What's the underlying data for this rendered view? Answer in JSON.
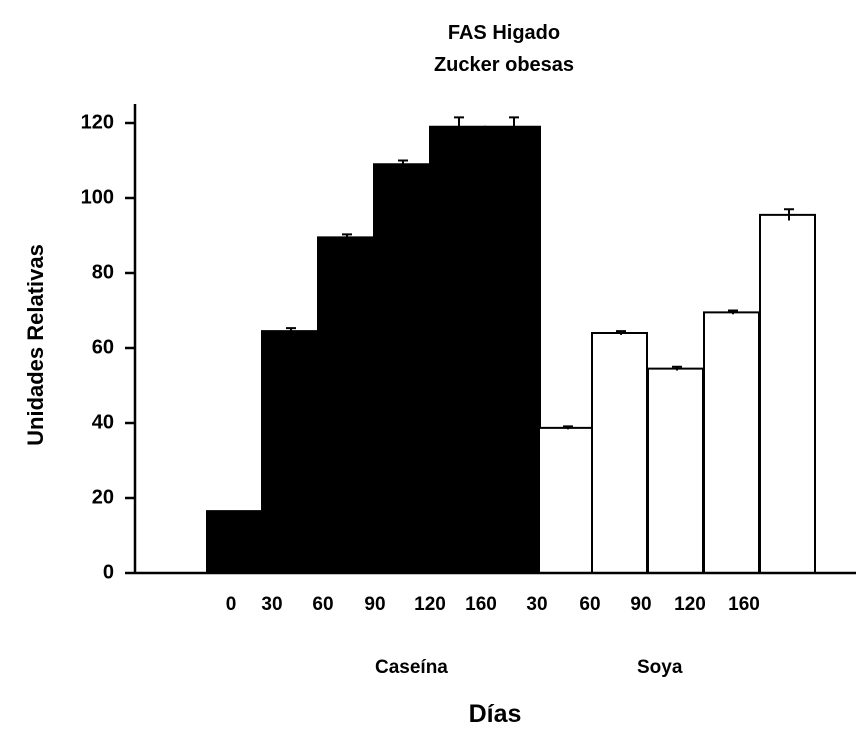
{
  "chart_data": {
    "type": "bar",
    "title": "FAS Higado",
    "subtitle": "Zucker obesas",
    "xlabel": "Días",
    "ylabel": "Unidades Relativas",
    "ylim": [
      0,
      125
    ],
    "yticks": [
      "0",
      "20",
      "40",
      "60",
      "80",
      "100",
      "120"
    ],
    "x_tick_labels": [
      "0",
      "30",
      "60",
      "90",
      "120",
      "160",
      "30",
      "60",
      "90",
      "120",
      "160"
    ],
    "group_labels": [
      "Caseína",
      "Soya"
    ],
    "series": [
      {
        "name": "Caseína",
        "fill": "#000000",
        "categories": [
          "0",
          "30",
          "60",
          "90",
          "120",
          "160"
        ],
        "values": [
          16.5,
          64.5,
          89.5,
          109,
          119,
          119
        ],
        "errors": [
          0,
          0.8,
          0.8,
          1.0,
          2.5,
          2.5
        ]
      },
      {
        "name": "Soya",
        "fill": "#ffffff",
        "categories": [
          "30",
          "60",
          "90",
          "120",
          "160"
        ],
        "values": [
          38.7,
          64,
          54.5,
          69.5,
          95.5
        ],
        "errors": [
          0.4,
          0.5,
          0.5,
          0.5,
          1.5
        ]
      }
    ]
  }
}
